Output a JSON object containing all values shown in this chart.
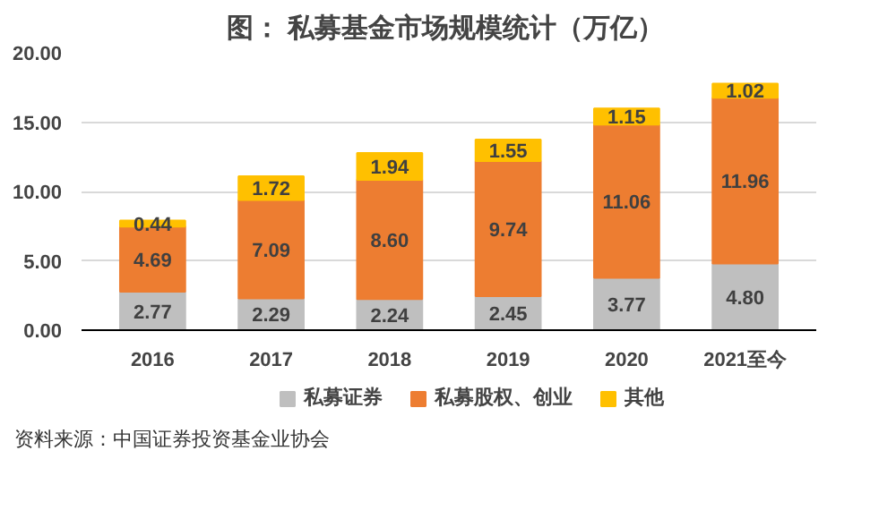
{
  "chart_data": {
    "type": "bar",
    "title": "图：  私募基金市场规模统计（万亿）",
    "categories": [
      "2016",
      "2017",
      "2018",
      "2019",
      "2020",
      "2021至今"
    ],
    "stacked": true,
    "series": [
      {
        "name": "私募证券",
        "color": "#bfbfbf",
        "values": [
          2.77,
          2.29,
          2.24,
          2.45,
          3.77,
          4.8
        ],
        "value_labels": [
          "2.77",
          "2.29",
          "2.24",
          "2.45",
          "3.77",
          "4.80"
        ]
      },
      {
        "name": "私募股权、创业",
        "color": "#ed7d31",
        "values": [
          4.69,
          7.09,
          8.6,
          9.74,
          11.06,
          11.96
        ],
        "value_labels": [
          "4.69",
          "7.09",
          "8.60",
          "9.74",
          "11.06",
          "11.96"
        ]
      },
      {
        "name": "其他",
        "color": "#ffc000",
        "values": [
          0.44,
          1.72,
          1.94,
          1.55,
          1.15,
          1.02
        ],
        "value_labels": [
          "0.44",
          "1.72",
          "1.94",
          "1.55",
          "1.15",
          "1.02"
        ]
      }
    ],
    "ylim": [
      0,
      20
    ],
    "yticks": [
      {
        "value": 0,
        "label": "0.00"
      },
      {
        "value": 5,
        "label": "5.00"
      },
      {
        "value": 10,
        "label": "10.00"
      },
      {
        "value": 15,
        "label": "15.00"
      },
      {
        "value": 20,
        "label": "20.00"
      }
    ],
    "grid": "y",
    "legend": "bottom",
    "annotations": [
      "资料来源：中国证券投资基金业协会"
    ]
  }
}
